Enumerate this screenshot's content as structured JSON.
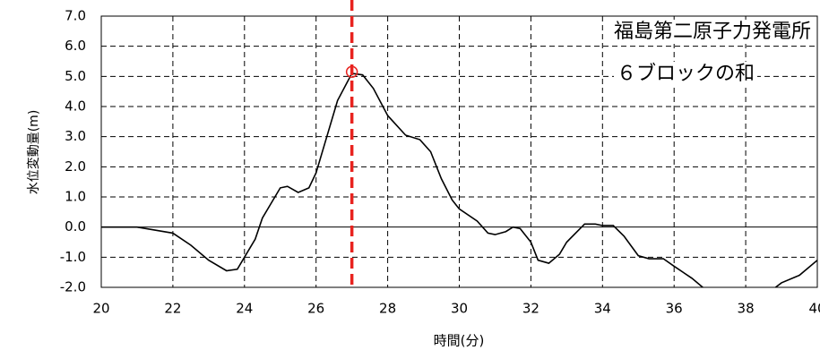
{
  "chart_data": {
    "type": "line",
    "xlabel": "時間(分)",
    "ylabel": "水位変動量(m)",
    "annotations": [
      "福島第二原子力発電所",
      "６ブロックの和"
    ],
    "annotation_color": "#2b2b9e",
    "x": [
      20,
      21,
      21.5,
      22,
      22.5,
      23,
      23.5,
      23.8,
      24,
      24.3,
      24.5,
      25,
      25.2,
      25.5,
      25.8,
      26,
      26.3,
      26.6,
      27,
      27.3,
      27.6,
      28,
      28.5,
      28.9,
      29.2,
      29.5,
      29.8,
      30,
      30.5,
      30.8,
      31,
      31.3,
      31.5,
      31.7,
      32,
      32.2,
      32.5,
      32.8,
      33,
      33.5,
      33.8,
      34,
      34.3,
      34.6,
      35,
      35.3,
      35.7,
      36,
      36.5,
      37,
      37.5,
      38,
      38.5,
      39,
      39.5,
      40
    ],
    "series": [
      {
        "name": null,
        "color": "#000000",
        "values": [
          0,
          0,
          -0.1,
          -0.2,
          -0.6,
          -1.1,
          -1.45,
          -1.4,
          -1.0,
          -0.4,
          0.3,
          1.3,
          1.35,
          1.15,
          1.3,
          1.8,
          3.0,
          4.2,
          5.1,
          5.05,
          4.6,
          3.7,
          3.05,
          2.9,
          2.5,
          1.6,
          0.9,
          0.6,
          0.2,
          -0.2,
          -0.25,
          -0.15,
          0,
          -0.05,
          -0.5,
          -1.1,
          -1.2,
          -0.9,
          -0.5,
          0.1,
          0.1,
          0.05,
          0.05,
          -0.3,
          -0.95,
          -1.05,
          -1.05,
          -1.3,
          -1.7,
          -2.2,
          -2.4,
          -2.5,
          -2.3,
          -1.85,
          -1.6,
          -1.1
        ]
      }
    ],
    "vline": {
      "x": 27,
      "color": "#e8231f"
    },
    "marker": {
      "x": 27,
      "y": 5.15,
      "color": "#e8231f"
    },
    "xlim": [
      20,
      40
    ],
    "ylim": [
      -2,
      7
    ],
    "xticks": [
      20,
      22,
      24,
      26,
      28,
      30,
      32,
      34,
      36,
      38,
      40
    ],
    "yticks": [
      {
        "value": -2,
        "label": "-2.0"
      },
      {
        "value": -1,
        "label": "-1.0"
      },
      {
        "value": 0,
        "label": "0.0"
      },
      {
        "value": 1,
        "label": "1.0"
      },
      {
        "value": 2,
        "label": "2.0"
      },
      {
        "value": 3,
        "label": "3.0"
      },
      {
        "value": 4,
        "label": "4.0"
      },
      {
        "value": 5,
        "label": "5.0"
      },
      {
        "value": 6,
        "label": "6.0"
      },
      {
        "value": 7,
        "label": "7.0"
      }
    ],
    "grid": true
  }
}
